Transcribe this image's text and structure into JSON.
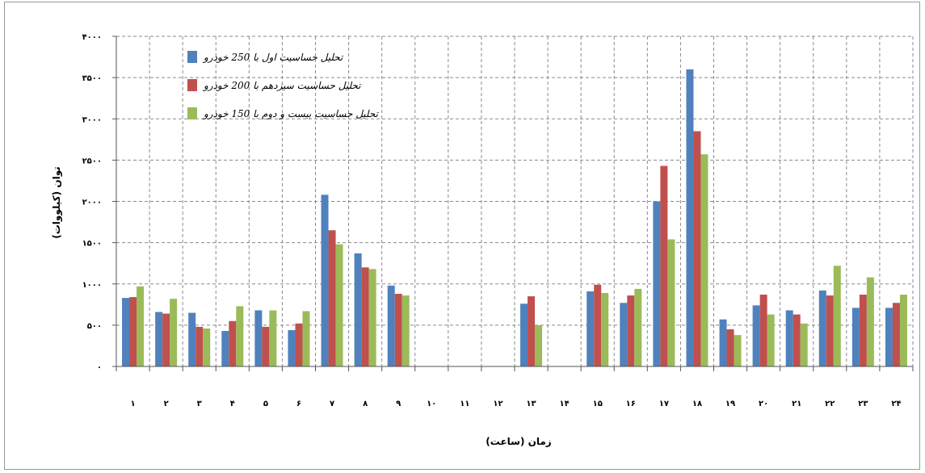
{
  "chart_data": {
    "type": "bar",
    "title": "",
    "xlabel": "زمان (ساعت)",
    "ylabel": "توان (کیلووات)",
    "ylim": [
      0,
      4000
    ],
    "yticks": [
      0,
      500,
      1000,
      1500,
      2000,
      2500,
      3000,
      3500,
      4000
    ],
    "ytick_labels": [
      "۰",
      "۵۰۰",
      "۱۰۰۰",
      "۱۵۰۰",
      "۲۰۰۰",
      "۲۵۰۰",
      "۳۰۰۰",
      "۳۵۰۰",
      "۴۰۰۰"
    ],
    "categories": [
      "۱",
      "۲",
      "۳",
      "۴",
      "۵",
      "۶",
      "۷",
      "۸",
      "۹",
      "۱۰",
      "۱۱",
      "۱۲",
      "۱۳",
      "۱۴",
      "۱۵",
      "۱۶",
      "۱۷",
      "۱۸",
      "۱۹",
      "۲۰",
      "۲۱",
      "۲۲",
      "۲۳",
      "۲۴"
    ],
    "grid": true,
    "legend_position": "top-left",
    "series": [
      {
        "name": "تحلیل حساسیت اول با 250 خودرو",
        "color": "#4f81bd",
        "values": [
          830,
          660,
          650,
          430,
          680,
          440,
          2080,
          1370,
          980,
          0,
          0,
          0,
          760,
          0,
          910,
          770,
          2000,
          3600,
          570,
          740,
          680,
          920,
          710,
          710
        ]
      },
      {
        "name": "تحلیل حساسیت سیزدهم با 200 خودرو",
        "color": "#c0504d",
        "values": [
          840,
          640,
          480,
          550,
          480,
          520,
          1650,
          1200,
          880,
          0,
          0,
          0,
          850,
          0,
          990,
          860,
          2430,
          2850,
          450,
          870,
          630,
          860,
          870,
          770
        ]
      },
      {
        "name": "تحلیل حساسیت بیست و دوم با 150 خودرو",
        "color": "#9bbb59",
        "values": [
          970,
          820,
          460,
          730,
          680,
          670,
          1480,
          1180,
          860,
          0,
          0,
          0,
          500,
          0,
          890,
          940,
          1540,
          2570,
          380,
          630,
          520,
          1220,
          1080,
          870
        ]
      }
    ]
  }
}
